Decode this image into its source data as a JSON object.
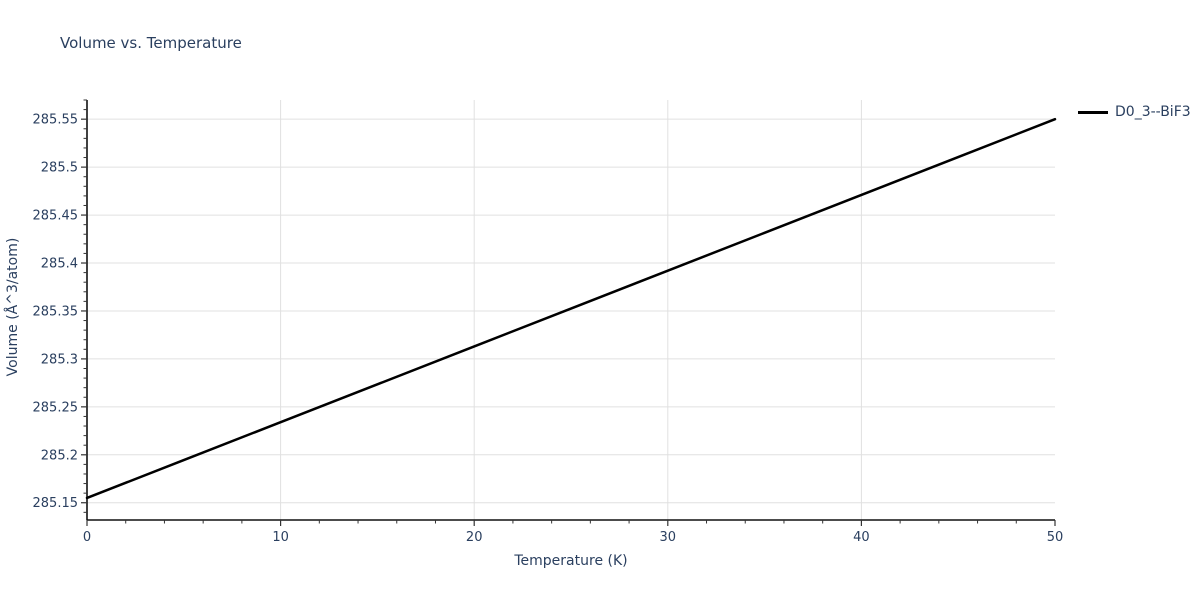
{
  "page": {
    "background": "#ffffff"
  },
  "colors": {
    "text": "#2a3f5f",
    "grid": "#e0e0e0",
    "axis": "#111111",
    "tick": "#333333",
    "series_line": "#000000"
  },
  "title": {
    "text": "Volume vs. Temperature"
  },
  "axes": {
    "x_label": "Temperature (K)",
    "y_label": "Volume (Å^3/atom)"
  },
  "legend": {
    "items": [
      {
        "label": "D0_3--BiF3",
        "line_color": "#000000"
      }
    ]
  },
  "chart_data": {
    "type": "line",
    "title": "Volume vs. Temperature",
    "xlabel": "Temperature (K)",
    "ylabel": "Volume (Å^3/atom)",
    "x": [
      0,
      5,
      10,
      15,
      20,
      25,
      30,
      35,
      40,
      45,
      50
    ],
    "series": [
      {
        "name": "D0_3--BiF3",
        "color": "#000000",
        "line_width": 2.5,
        "values": [
          285.155,
          285.1945,
          285.234,
          285.2735,
          285.313,
          285.3525,
          285.392,
          285.4315,
          285.471,
          285.5105,
          285.55
        ]
      }
    ],
    "xlim": [
      0,
      50
    ],
    "ylim": [
      285.132,
      285.57
    ],
    "x_major_ticks": [
      0,
      10,
      20,
      30,
      40,
      50
    ],
    "x_tick_labels": [
      "0",
      "10",
      "20",
      "30",
      "40",
      "50"
    ],
    "x_minor_step": 2,
    "y_major_ticks": [
      285.15,
      285.2,
      285.25,
      285.3,
      285.35,
      285.4,
      285.45,
      285.5,
      285.55
    ],
    "y_tick_labels": [
      "285.15",
      "285.2",
      "285.25",
      "285.3",
      "285.35",
      "285.4",
      "285.45",
      "285.5",
      "285.55"
    ],
    "y_minor_step": 0.01,
    "grid": true,
    "x_gridline_values": [
      10,
      20,
      30,
      40
    ],
    "legend_position": "outside-top-right"
  }
}
